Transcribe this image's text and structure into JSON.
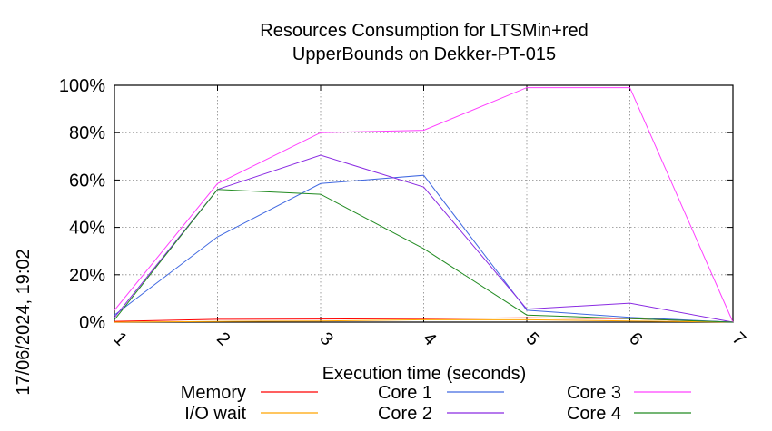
{
  "chart_data": {
    "type": "line",
    "title_line1": "Resources Consumption for LTSMin+red",
    "title_line2": "UpperBounds on Dekker-PT-015",
    "xlabel": "Execution time (seconds)",
    "ylabel": "",
    "side_label": "17/06/2024, 19:02",
    "x": [
      1,
      2,
      3,
      4,
      5,
      6,
      7
    ],
    "x_ticks": [
      "1",
      "2",
      "3",
      "4",
      "5",
      "6",
      "7"
    ],
    "xlim": [
      1,
      7
    ],
    "ylim": [
      0,
      100
    ],
    "y_ticks": [
      {
        "value": 0,
        "label": "0%"
      },
      {
        "value": 20,
        "label": "20%"
      },
      {
        "value": 40,
        "label": "40%"
      },
      {
        "value": 60,
        "label": "60%"
      },
      {
        "value": 80,
        "label": "80%"
      },
      {
        "value": 100,
        "label": "100%"
      }
    ],
    "grid": true,
    "legend_position": "bottom",
    "series": [
      {
        "name": "Memory",
        "color": "#ff0000",
        "values": [
          0.3,
          1.2,
          1.3,
          1.5,
          1.8,
          1.5,
          0
        ]
      },
      {
        "name": "I/O wait",
        "color": "#ffa500",
        "values": [
          0,
          0.3,
          0.5,
          1.0,
          1.0,
          0.5,
          0
        ]
      },
      {
        "name": "Core 1",
        "color": "#4169e1",
        "values": [
          3,
          36,
          58.5,
          62,
          5,
          2,
          0
        ]
      },
      {
        "name": "Core 2",
        "color": "#8a2be2",
        "values": [
          2,
          56,
          70.5,
          57,
          5.5,
          8,
          0
        ]
      },
      {
        "name": "Core 3",
        "color": "#ff40ff",
        "values": [
          5,
          58.5,
          80,
          81,
          99,
          99,
          0
        ]
      },
      {
        "name": "Core 4",
        "color": "#228b22",
        "values": [
          1,
          56,
          54,
          31,
          3,
          1.5,
          0
        ]
      }
    ]
  }
}
